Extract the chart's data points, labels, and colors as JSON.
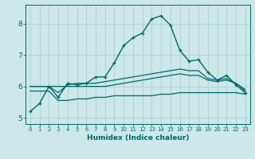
{
  "xlabel": "Humidex (Indice chaleur)",
  "bg_color": "#cce8e8",
  "grid_color": "#b0d0d0",
  "line_color": "#006868",
  "xlim": [
    -0.5,
    23.5
  ],
  "ylim": [
    4.8,
    8.6
  ],
  "xticks": [
    0,
    1,
    2,
    3,
    4,
    5,
    6,
    7,
    8,
    9,
    10,
    11,
    12,
    13,
    14,
    15,
    16,
    17,
    18,
    19,
    20,
    21,
    22,
    23
  ],
  "yticks": [
    5,
    6,
    7,
    8
  ],
  "line1_marked": [
    5.2,
    5.45,
    6.0,
    5.65,
    6.1,
    6.05,
    6.1,
    6.3,
    6.3,
    6.75,
    7.3,
    7.55,
    7.7,
    8.15,
    8.25,
    7.95,
    7.15,
    6.8,
    6.85,
    6.45,
    6.2,
    6.35,
    6.05,
    5.8
  ],
  "line2_flat": [
    6.0,
    6.0,
    6.0,
    6.0,
    6.0,
    6.0,
    6.0,
    6.0,
    6.0,
    6.05,
    6.1,
    6.15,
    6.2,
    6.25,
    6.3,
    6.35,
    6.4,
    6.35,
    6.35,
    6.2,
    6.15,
    6.2,
    6.1,
    5.85
  ],
  "line3_lower": [
    5.85,
    5.85,
    5.85,
    5.55,
    5.55,
    5.6,
    5.6,
    5.65,
    5.65,
    5.7,
    5.7,
    5.7,
    5.7,
    5.7,
    5.75,
    5.75,
    5.8,
    5.8,
    5.8,
    5.8,
    5.8,
    5.8,
    5.8,
    5.75
  ],
  "line4_rising": [
    6.0,
    6.0,
    6.0,
    5.8,
    6.05,
    6.1,
    6.1,
    6.1,
    6.15,
    6.2,
    6.25,
    6.3,
    6.35,
    6.4,
    6.45,
    6.5,
    6.55,
    6.5,
    6.5,
    6.25,
    6.2,
    6.25,
    6.1,
    5.9
  ]
}
